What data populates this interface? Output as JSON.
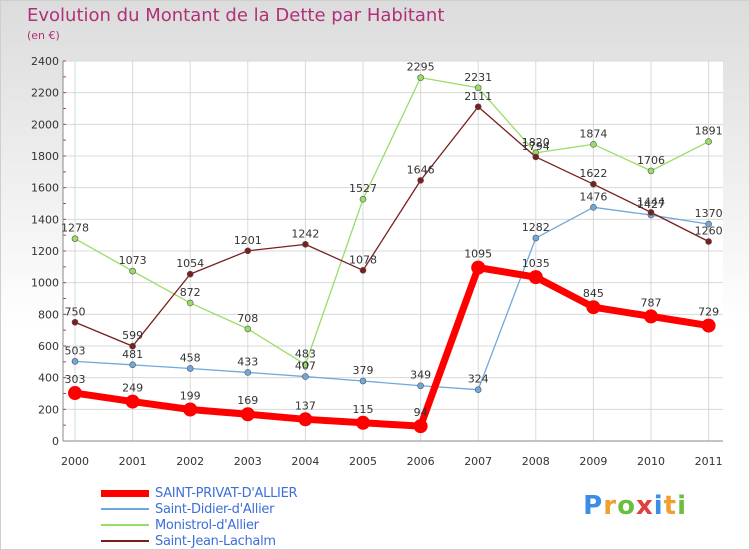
{
  "chart_data": {
    "type": "line",
    "title": "Evolution du Montant de la Dette par Habitant",
    "subtitle": "(en €)",
    "categories": [
      "2000",
      "2001",
      "2002",
      "2003",
      "2004",
      "2005",
      "2006",
      "2007",
      "2008",
      "2009",
      "2010",
      "2011"
    ],
    "ylim": [
      0,
      2400
    ],
    "yticks": [
      0,
      200,
      400,
      600,
      800,
      1000,
      1200,
      1400,
      1600,
      1800,
      2000,
      2200,
      2400
    ],
    "grid": true,
    "legend_position": "bottom-left",
    "series": [
      {
        "name": "SAINT-PRIVAT-D'ALLIER",
        "color": "#ff0000",
        "emphasis": true,
        "values": [
          303,
          249,
          199,
          169,
          137,
          115,
          94,
          1095,
          1035,
          845,
          787,
          729
        ]
      },
      {
        "name": "Saint-Didier-d'Allier",
        "color": "#6fa8dc",
        "values": [
          503,
          481,
          458,
          433,
          407,
          379,
          349,
          324,
          1282,
          1476,
          1427,
          1370
        ]
      },
      {
        "name": "Monistrol-d'Allier",
        "color": "#99dd66",
        "values": [
          1278,
          1073,
          872,
          708,
          483,
          1527,
          2295,
          2231,
          1820,
          1874,
          1706,
          1891
        ]
      },
      {
        "name": "Saint-Jean-Lachalm",
        "color": "#7a1f1f",
        "values": [
          750,
          599,
          1054,
          1201,
          1242,
          1078,
          1646,
          2111,
          1794,
          1622,
          1444,
          1260
        ]
      }
    ]
  },
  "brand": {
    "letters": [
      "P",
      "r",
      "o",
      "x",
      "i",
      "t",
      "i"
    ],
    "colors": [
      "#3a8ee6",
      "#f0a030",
      "#6abf40",
      "#e04040",
      "#3a8ee6",
      "#f0a030",
      "#6abf40"
    ]
  }
}
